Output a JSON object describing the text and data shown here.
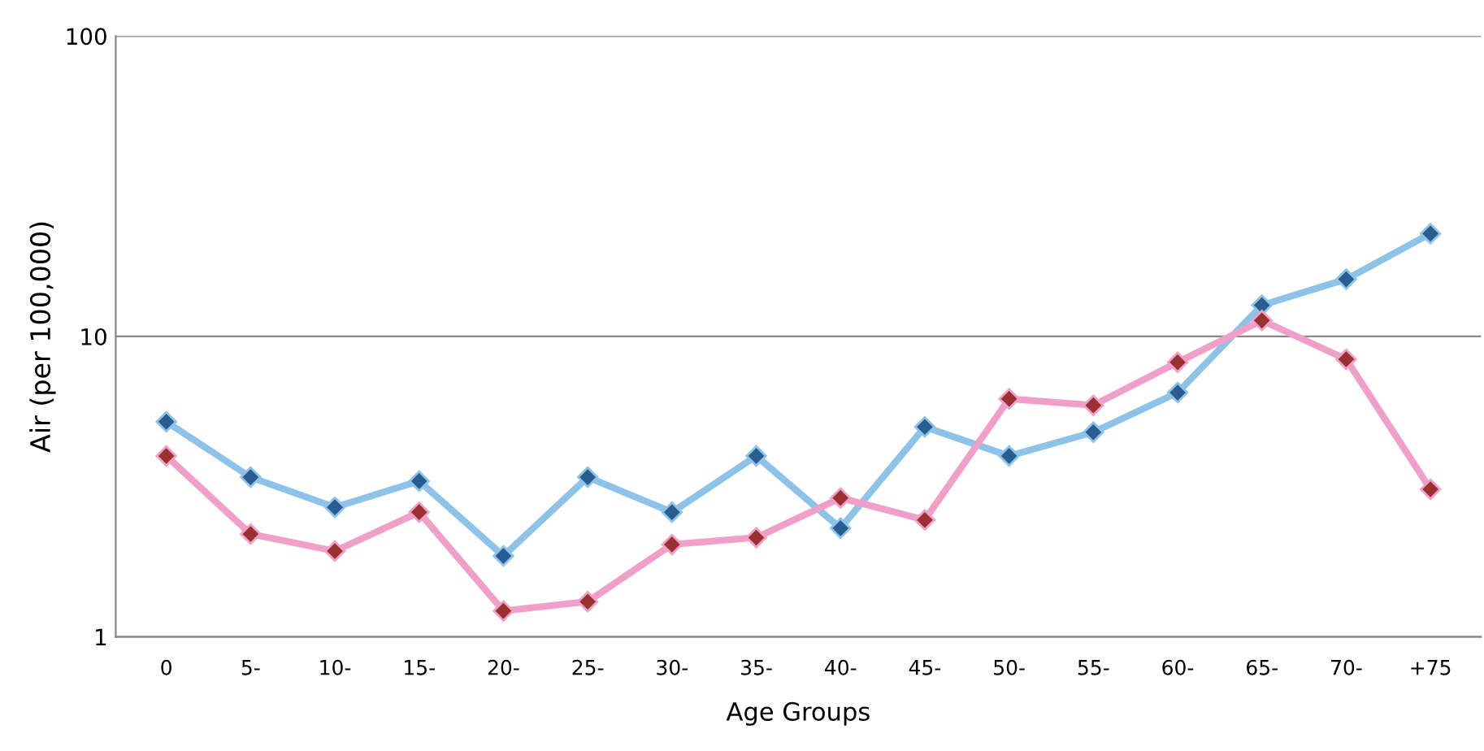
{
  "chart_data": {
    "type": "line",
    "xlabel": "Age Groups",
    "ylabel": "Air (per 100,000)",
    "categories": [
      "0",
      "5-",
      "10-",
      "15-",
      "20-",
      "25-",
      "30-",
      "35-",
      "40-",
      "45-",
      "50-",
      "55-",
      "60-",
      "65-",
      "70-",
      "+75"
    ],
    "series": [
      {
        "color": "#8dc3e8",
        "values": [
          5.2,
          3.4,
          2.7,
          3.3,
          1.86,
          3.4,
          2.6,
          4.0,
          2.3,
          5.0,
          4.0,
          4.8,
          6.5,
          12.7,
          15.5,
          22
        ]
      },
      {
        "color": "#f0a0c8",
        "values": [
          4.0,
          2.2,
          1.93,
          2.6,
          1.22,
          1.31,
          2.03,
          2.14,
          2.9,
          2.45,
          6.2,
          5.9,
          8.2,
          11.3,
          8.4,
          3.1
        ]
      }
    ],
    "log": true,
    "ylim": [
      1,
      100
    ],
    "yticks": [
      1,
      10,
      100
    ],
    "grid": "y",
    "legend": false,
    "marker": "diamond",
    "line_style": "solid"
  }
}
